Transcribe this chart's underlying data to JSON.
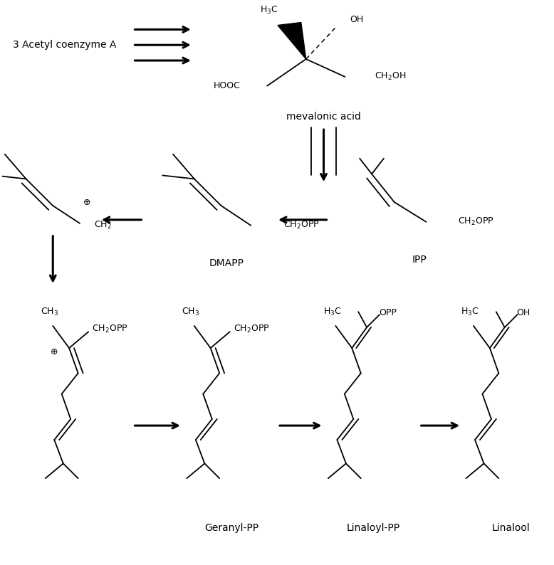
{
  "bg_color": "#ffffff",
  "text_color": "#000000",
  "figsize": [
    7.78,
    7.94
  ],
  "dpi": 100,
  "labels": {
    "acetyl": "3 Acetyl coenzyme A",
    "mevalonic": "mevalonic acid",
    "IPP": "IPP",
    "DMAPP": "DMAPP",
    "geranyl": "Geranyl-PP",
    "linaloyl": "Linaloyl-PP",
    "linalool": "Linalool"
  }
}
